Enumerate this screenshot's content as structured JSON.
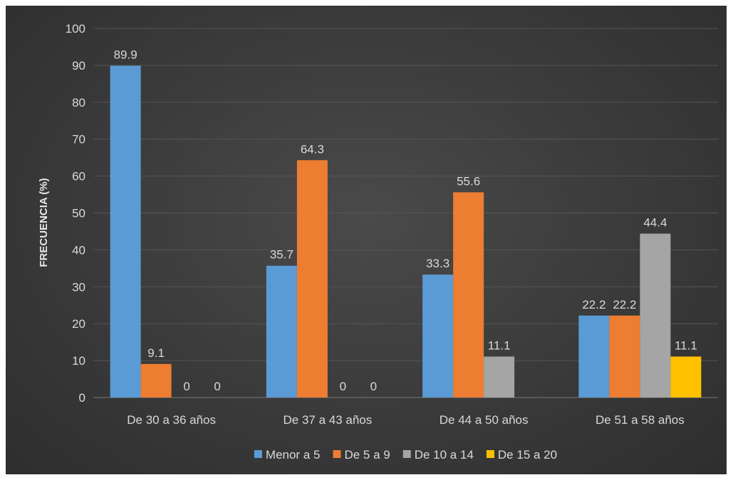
{
  "chart_data": {
    "type": "bar",
    "ylabel": "FRECUENCIA (%)",
    "ylim": [
      0,
      100
    ],
    "yticks": [
      0,
      10,
      20,
      30,
      40,
      50,
      60,
      70,
      80,
      90,
      100
    ],
    "grid": true,
    "legend_position": "bottom",
    "categories": [
      "De 30 a 36 años",
      "De 37 a 43 años",
      "De 44 a 50 años",
      "De 51 a 58 años"
    ],
    "series": [
      {
        "name": "Menor a 5",
        "color": "#5b9bd5",
        "values": [
          89.9,
          35.7,
          33.3,
          22.2
        ],
        "labels": [
          "89.9",
          "35.7",
          "33.3",
          "22.2"
        ]
      },
      {
        "name": "De 5 a 9",
        "color": "#ed7d31",
        "values": [
          9.1,
          64.3,
          55.6,
          22.2
        ],
        "labels": [
          "9.1",
          "64.3",
          "55.6",
          "22.2"
        ]
      },
      {
        "name": "De 10 a 14",
        "color": "#a5a5a5",
        "values": [
          0,
          0,
          11.1,
          44.4
        ],
        "labels": [
          "0",
          "0",
          "11.1",
          "44.4"
        ]
      },
      {
        "name": "De 15 a 20",
        "color": "#ffc000",
        "values": [
          0,
          0,
          0,
          11.1
        ],
        "labels": [
          "0",
          "0",
          "",
          "11.1"
        ]
      }
    ]
  }
}
